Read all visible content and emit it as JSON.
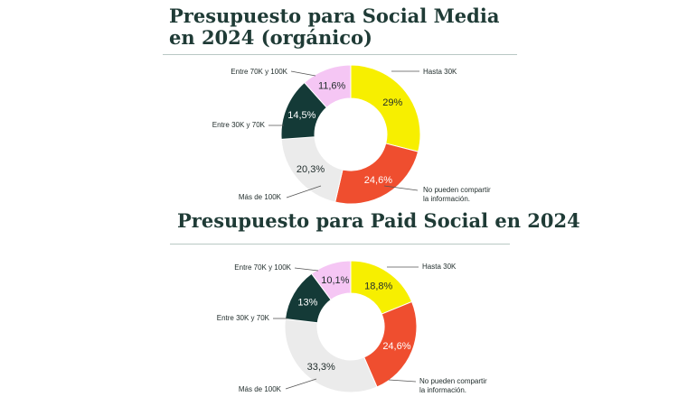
{
  "colors": {
    "title": "#1f3b36",
    "hasta_30k": "#f7ef00",
    "no_pueden": "#ef4e2f",
    "mas_100k": "#ebebeb",
    "entre_30_70": "#143a37",
    "entre_70_100": "#f5c6f4",
    "leader": "#555555"
  },
  "chart_data": [
    {
      "type": "pie",
      "variant": "donut",
      "title": "Presupuesto para Social Media en 2024 (orgánico)",
      "title_lines": [
        "Presupuesto para Social Media",
        "en 2024 (orgánico)"
      ],
      "categories": [
        "Hasta 30K",
        "No pueden compartir la información.",
        "Más de 100K",
        "Entre 30K y 70K",
        "Entre 70K y 100K"
      ],
      "category_lines": [
        [
          "Hasta 30K"
        ],
        [
          "No pueden compartir",
          "la información."
        ],
        [
          "Más de 100K"
        ],
        [
          "Entre 30K y 70K"
        ],
        [
          "Entre 70K y 100K"
        ]
      ],
      "values": [
        29,
        24.6,
        20.3,
        14.5,
        11.6
      ],
      "value_labels": [
        "29%",
        "24,6%",
        "20,3%",
        "14,5%",
        "11,6%"
      ]
    },
    {
      "type": "pie",
      "variant": "donut",
      "title": "Presupuesto para Paid Social en 2024",
      "title_lines": [
        "Presupuesto para Paid Social en 2024"
      ],
      "categories": [
        "Hasta 30K",
        "No pueden compartir la información.",
        "Más de 100K",
        "Entre 30K y 70K",
        "Entre 70K y 100K"
      ],
      "category_lines": [
        [
          "Hasta 30K"
        ],
        [
          "No pueden compartir",
          "la información."
        ],
        [
          "Más de 100K"
        ],
        [
          "Entre 30K y 70K"
        ],
        [
          "Entre 70K y 100K"
        ]
      ],
      "values": [
        18.8,
        24.6,
        33.3,
        13,
        10.1
      ],
      "value_labels": [
        "18,8%",
        "24,6%",
        "33,3%",
        "13%",
        "10,1%"
      ]
    }
  ]
}
